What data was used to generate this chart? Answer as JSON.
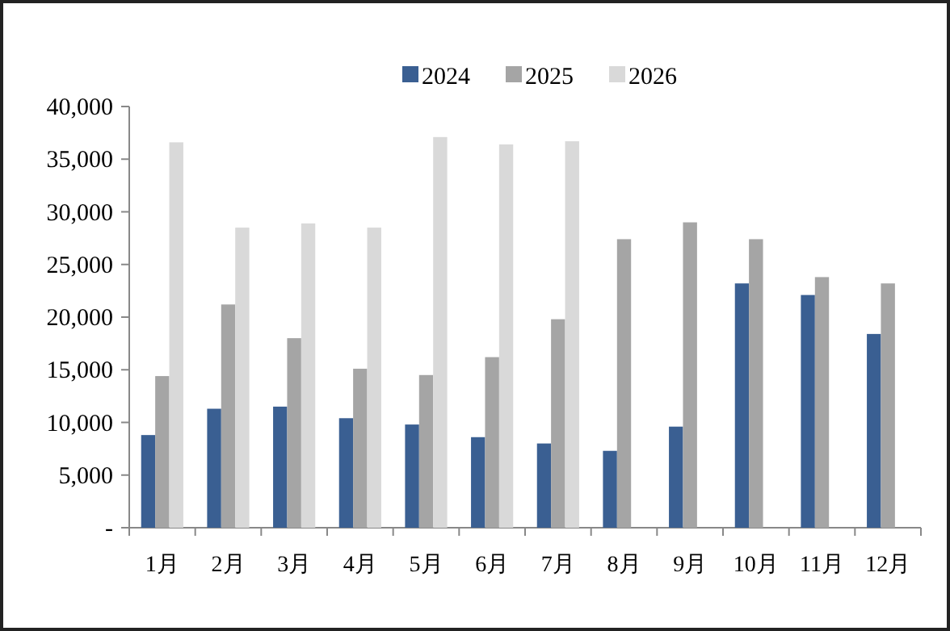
{
  "chart_data": {
    "type": "bar",
    "categories": [
      "1月",
      "2月",
      "3月",
      "4月",
      "5月",
      "6月",
      "7月",
      "8月",
      "9月",
      "10月",
      "11月",
      "12月"
    ],
    "series": [
      {
        "name": "2024",
        "color": "#3a5f92",
        "values": [
          8800,
          11300,
          11500,
          10400,
          9800,
          8600,
          8000,
          7300,
          9600,
          23200,
          22100,
          18400
        ]
      },
      {
        "name": "2025",
        "color": "#a5a5a5",
        "values": [
          14400,
          21200,
          18000,
          15100,
          14500,
          16200,
          19800,
          27400,
          29000,
          27400,
          23800,
          23200
        ]
      },
      {
        "name": "2026",
        "color": "#d9d9d9",
        "values": [
          36600,
          28500,
          28900,
          28500,
          37100,
          36400,
          36700,
          null,
          null,
          null,
          null,
          null
        ]
      }
    ],
    "ylim": [
      0,
      40000
    ],
    "yticks": [
      {
        "value": 0,
        "label": "-"
      },
      {
        "value": 5000,
        "label": "5,000"
      },
      {
        "value": 10000,
        "label": "10,000"
      },
      {
        "value": 15000,
        "label": "15,000"
      },
      {
        "value": 20000,
        "label": "20,000"
      },
      {
        "value": 25000,
        "label": "25,000"
      },
      {
        "value": 30000,
        "label": "30,000"
      },
      {
        "value": 35000,
        "label": "35,000"
      },
      {
        "value": 40000,
        "label": "40,000"
      }
    ],
    "legend": "top"
  }
}
